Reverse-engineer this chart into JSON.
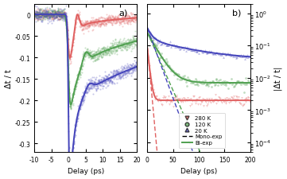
{
  "panel_a_label": "a)",
  "panel_b_label": "b)",
  "xlabel": "Delay (ps)",
  "ylabel_a": "Δt / t",
  "ylabel_b": "|Δt / t|",
  "colors": {
    "red": "#e06060",
    "green": "#50a050",
    "blue": "#4444bb"
  },
  "scatter_alpha": 0.35,
  "background": "#ffffff"
}
